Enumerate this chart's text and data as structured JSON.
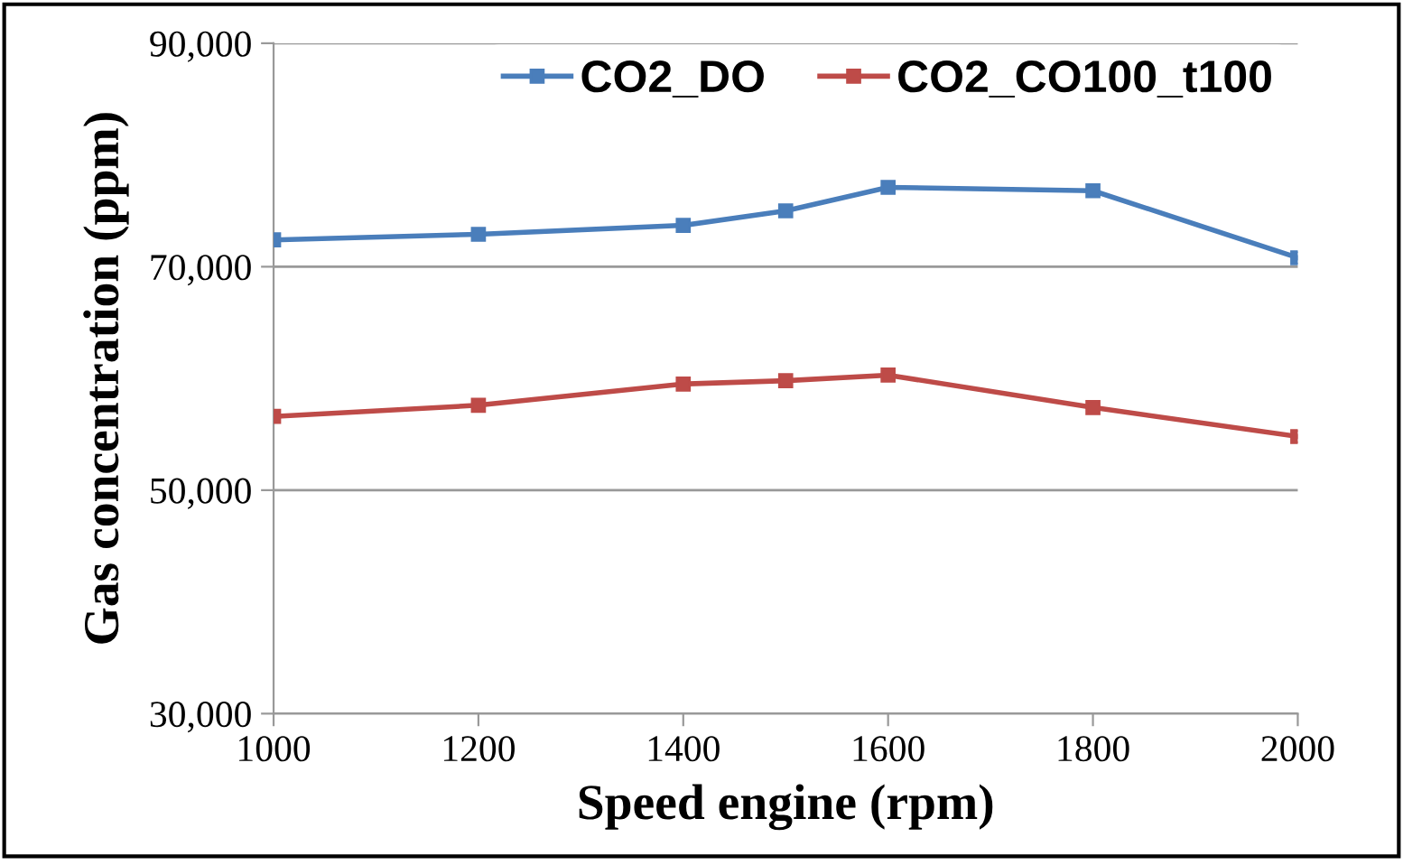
{
  "chart_data": {
    "type": "line",
    "xlabel": "Speed engine (rpm)",
    "ylabel": "Gas concentration (ppm)",
    "x": [
      1000,
      1200,
      1400,
      1500,
      1600,
      1800,
      2000
    ],
    "series": [
      {
        "name": "CO2_DO",
        "color": "#4a7ebb",
        "values": [
          72400,
          72900,
          73700,
          75000,
          77100,
          76800,
          70800
        ]
      },
      {
        "name": "CO2_CO100_t100",
        "color": "#be4b48",
        "values": [
          56600,
          57600,
          59500,
          59800,
          60300,
          57400,
          54800
        ]
      }
    ],
    "xlim": [
      1000,
      2000
    ],
    "xticks": [
      1000,
      1200,
      1400,
      1600,
      1800,
      2000
    ],
    "ylim": [
      30000,
      90000
    ],
    "yticks": [
      {
        "value": 30000,
        "label": "30,000"
      },
      {
        "value": 50000,
        "label": "50,000"
      },
      {
        "value": 70000,
        "label": "70,000"
      },
      {
        "value": 90000,
        "label": "90,000"
      }
    ],
    "grid": "y",
    "legend": "top",
    "marker": "square",
    "line_style": "solid"
  }
}
